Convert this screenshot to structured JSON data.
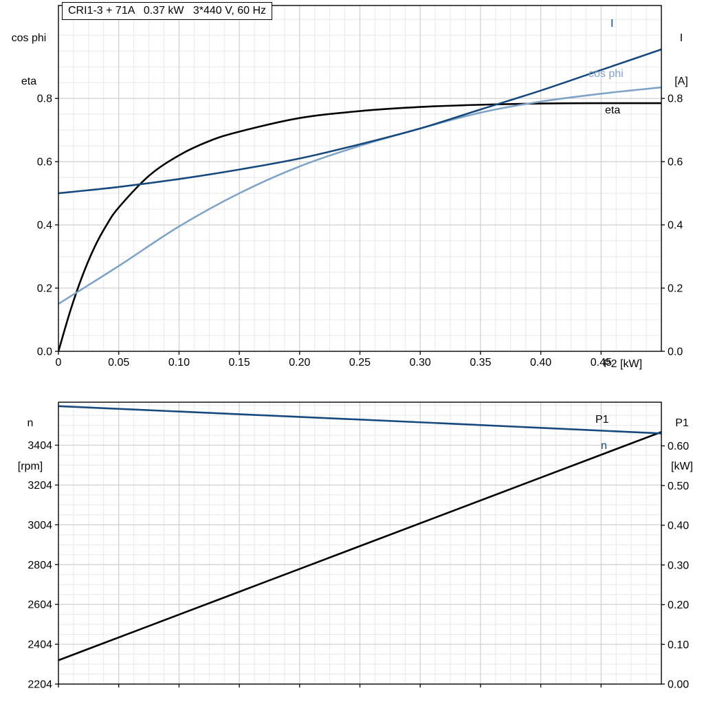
{
  "header": {
    "title_box": "CRI1-3 + 71A   0.37 kW   3*440 V, 60 Hz"
  },
  "axis_labels": {
    "top_left_1": "cos phi",
    "top_left_2": "eta",
    "top_right_1": "I",
    "top_right_2": "[A]",
    "x_label": "P2 [kW]",
    "bottom_left_1": "n",
    "bottom_left_2": "[rpm]",
    "bottom_right_1": "P1",
    "bottom_right_2": "[kW]"
  },
  "curve_labels": {
    "i": "I",
    "cos_phi": "cos phi",
    "eta": "eta",
    "p1": "P1",
    "n": "n"
  },
  "colors": {
    "dark_blue": "#17497e",
    "light_blue": "#7fa3c6",
    "black": "#000000",
    "grid_major": "#c9c9c9",
    "grid_minor": "#e8e8e8",
    "axis": "#000000"
  },
  "chart_data": [
    {
      "type": "line",
      "title": "CRI1-3 + 71A 0.37 kW 3*440 V, 60 Hz",
      "xlabel": "P2 [kW]",
      "xlim": [
        0,
        0.5
      ],
      "x_minor_step": 0.0125,
      "x_ticks": [
        0,
        0.05,
        0.1,
        0.15,
        0.2,
        0.25,
        0.3,
        0.35,
        0.4,
        0.45
      ],
      "x_tick_labels": [
        "0",
        "0.05",
        "0.10",
        "0.15",
        "0.20",
        "0.25",
        "0.30",
        "0.35",
        "0.40",
        "0.45"
      ],
      "left_axis": {
        "label": "cos phi / eta",
        "lim": [
          0,
          1.094
        ],
        "ticks": [
          0,
          0.2,
          0.4,
          0.6,
          0.8
        ],
        "tick_labels": [
          "0.0",
          "0.2",
          "0.4",
          "0.6",
          "0.8"
        ],
        "minor_step": 0.05
      },
      "right_axis": {
        "label": "I [A]",
        "lim": [
          0,
          1.094
        ],
        "ticks": [
          0,
          0.2,
          0.4,
          0.6,
          0.8
        ],
        "tick_labels": [
          "0.0",
          "0.2",
          "0.4",
          "0.6",
          "0.8"
        ],
        "minor_step": 0.05
      },
      "series": [
        {
          "name": "eta",
          "axis": "left",
          "color": "#000000",
          "width": 2.6,
          "x": [
            0,
            0.01,
            0.02,
            0.03,
            0.04,
            0.05,
            0.075,
            0.1,
            0.125,
            0.15,
            0.2,
            0.25,
            0.3,
            0.35,
            0.4,
            0.45,
            0.5
          ],
          "y": [
            0,
            0.13,
            0.24,
            0.33,
            0.4,
            0.455,
            0.555,
            0.62,
            0.665,
            0.695,
            0.738,
            0.76,
            0.773,
            0.78,
            0.784,
            0.785,
            0.785
          ]
        },
        {
          "name": "cos phi",
          "axis": "left",
          "color": "#7fa3c6",
          "width": 2.6,
          "x": [
            0,
            0.05,
            0.1,
            0.15,
            0.2,
            0.25,
            0.3,
            0.35,
            0.4,
            0.45,
            0.5
          ],
          "y": [
            0.15,
            0.27,
            0.395,
            0.5,
            0.585,
            0.65,
            0.705,
            0.755,
            0.79,
            0.815,
            0.835
          ]
        },
        {
          "name": "I",
          "axis": "right",
          "color": "#17497e",
          "width": 2.6,
          "x": [
            0,
            0.05,
            0.1,
            0.15,
            0.2,
            0.25,
            0.3,
            0.35,
            0.4,
            0.45,
            0.5
          ],
          "y": [
            0.5,
            0.52,
            0.545,
            0.575,
            0.61,
            0.655,
            0.705,
            0.765,
            0.825,
            0.89,
            0.955
          ]
        }
      ]
    },
    {
      "type": "line",
      "title": "",
      "xlabel": "",
      "xlim": [
        0,
        0.5
      ],
      "x_minor_step": 0.0125,
      "x_ticks": [
        0,
        0.05,
        0.1,
        0.15,
        0.2,
        0.25,
        0.3,
        0.35,
        0.4,
        0.45
      ],
      "x_tick_labels": null,
      "left_axis": {
        "label": "n [rpm]",
        "lim": [
          2204,
          3620
        ],
        "ticks": [
          2204,
          2404,
          2604,
          2804,
          3004,
          3204,
          3404
        ],
        "tick_labels": [
          "2204",
          "2404",
          "2604",
          "2804",
          "3004",
          "3204",
          "3404"
        ],
        "minor_step": 50
      },
      "right_axis": {
        "label": "P1 [kW]",
        "lim": [
          0,
          0.71
        ],
        "ticks": [
          0,
          0.1,
          0.2,
          0.3,
          0.4,
          0.5,
          0.6
        ],
        "tick_labels": [
          "0.00",
          "0.10",
          "0.20",
          "0.30",
          "0.40",
          "0.50",
          "0.60"
        ],
        "minor_step": 0.025
      },
      "series": [
        {
          "name": "P1",
          "axis": "right",
          "color": "#000000",
          "width": 2.6,
          "x": [
            0,
            0.1,
            0.2,
            0.3,
            0.4,
            0.5
          ],
          "y": [
            0.06,
            0.175,
            0.29,
            0.405,
            0.52,
            0.635
          ]
        },
        {
          "name": "n",
          "axis": "left",
          "color": "#17497e",
          "width": 2.6,
          "x": [
            0,
            0.1,
            0.2,
            0.3,
            0.4,
            0.5
          ],
          "y": [
            3600,
            3573,
            3546,
            3519,
            3491,
            3463
          ]
        }
      ]
    }
  ]
}
